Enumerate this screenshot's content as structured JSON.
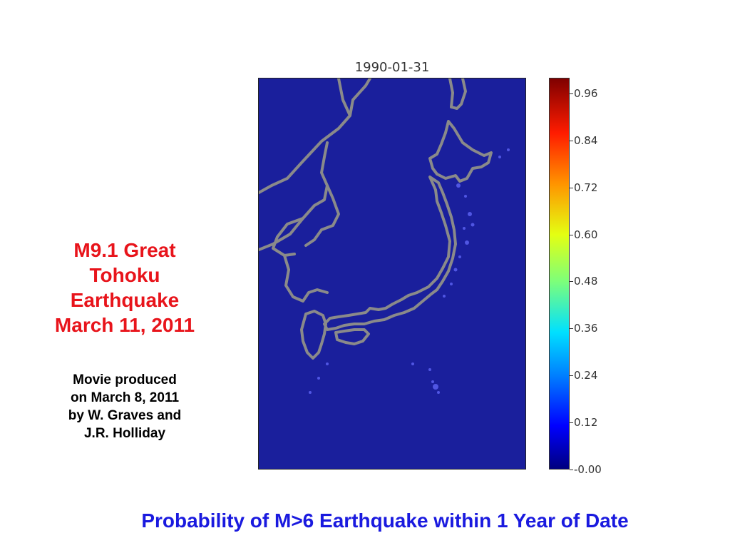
{
  "event": {
    "title_lines": [
      "M9.1 Great",
      "Tohoku",
      "Earthquake",
      "March 11, 2011"
    ]
  },
  "credit": {
    "lines": [
      "Movie produced",
      "on March 8, 2011",
      "by W. Graves and",
      "J.R. Holliday"
    ]
  },
  "map": {
    "date": "1990-01-31",
    "ocean_color": "#1a1f9c",
    "coastline_color": "#8a8a8a"
  },
  "colorbar": {
    "min": 0.0,
    "max": 1.0,
    "ticks": [
      {
        "value": 0.96,
        "label": "0.96"
      },
      {
        "value": 0.84,
        "label": "0.84"
      },
      {
        "value": 0.72,
        "label": "0.72"
      },
      {
        "value": 0.6,
        "label": "0.60"
      },
      {
        "value": 0.48,
        "label": "0.48"
      },
      {
        "value": 0.36,
        "label": "0.36"
      },
      {
        "value": 0.24,
        "label": "0.24"
      },
      {
        "value": 0.12,
        "label": "0.12"
      },
      {
        "value": 0.0,
        "label": "-0.00"
      }
    ]
  },
  "caption": "Probability of M>6 Earthquake within 1 Year of Date"
}
